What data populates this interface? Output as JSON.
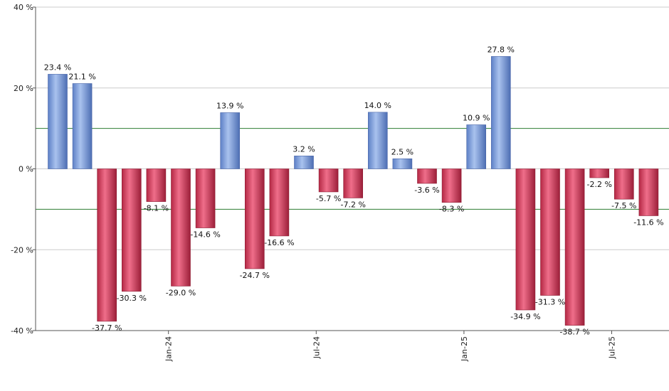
{
  "chart_data": {
    "type": "bar",
    "values": [
      23.4,
      21.1,
      -37.7,
      -30.3,
      -8.1,
      -29.0,
      -14.6,
      13.9,
      -24.7,
      -16.6,
      3.2,
      -5.7,
      -7.2,
      14.0,
      2.5,
      -3.6,
      -8.3,
      10.9,
      27.8,
      -34.9,
      -31.3,
      -38.7,
      -2.2,
      -7.5,
      -11.6
    ],
    "value_labels": [
      "23.4 %",
      "21.1 %",
      "-37.7 %",
      "-30.3 %",
      "-8.1 %",
      "-29.0 %",
      "-14.6 %",
      "13.9 %",
      "-24.7 %",
      "-16.6 %",
      "3.2 %",
      "-5.7 %",
      "-7.2 %",
      "14.0 %",
      "2.5 %",
      "-3.6 %",
      "-8.3 %",
      "10.9 %",
      "27.8 %",
      "-34.9 %",
      "-31.3 %",
      "-38.7 %",
      "-2.2 %",
      "-7.5 %",
      "-11.6 %"
    ],
    "ylim": [
      -40,
      40
    ],
    "y_ticks": [
      {
        "value": 40,
        "label": "40 %"
      },
      {
        "value": 20,
        "label": "20 %"
      },
      {
        "value": 0,
        "label": "0 %"
      },
      {
        "value": -20,
        "label": "-20 %"
      },
      {
        "value": -40,
        "label": "-40 %"
      }
    ],
    "x_ticks": [
      {
        "after_bar": 4,
        "label": "Jan-24"
      },
      {
        "after_bar": 10,
        "label": "Jul-24"
      },
      {
        "after_bar": 16,
        "label": "Jan-25"
      },
      {
        "after_bar": 22,
        "label": "Jul-25"
      }
    ],
    "reference_lines": [
      10,
      -10
    ],
    "grid": true,
    "colors": {
      "positive": "#7b9fde",
      "negative": "#c8304e",
      "reference_line": "#2e7d32",
      "grid": "#cccccc"
    }
  }
}
